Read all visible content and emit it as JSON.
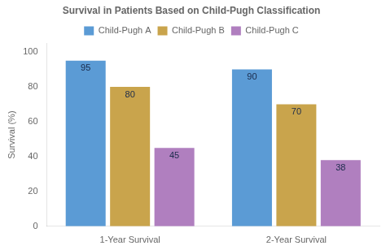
{
  "chart_data": {
    "type": "bar",
    "title": "Survival in Patients Based on Child-Pugh Classification",
    "ylabel": "Survival (%)",
    "categories": [
      "1-Year Survival",
      "2-Year Survival"
    ],
    "series": [
      {
        "name": "Child-Pugh A",
        "color": "#5b9bd5",
        "values": [
          95,
          90
        ]
      },
      {
        "name": "Child-Pugh B",
        "color": "#c9a44c",
        "values": [
          80,
          70
        ]
      },
      {
        "name": "Child-Pugh C",
        "color": "#b07fbf",
        "values": [
          45,
          38
        ]
      }
    ],
    "ylim": [
      0,
      105
    ],
    "yticks": [
      0,
      20,
      40,
      60,
      80,
      100
    ],
    "grid": false,
    "legend": "top",
    "data_labels": true
  }
}
